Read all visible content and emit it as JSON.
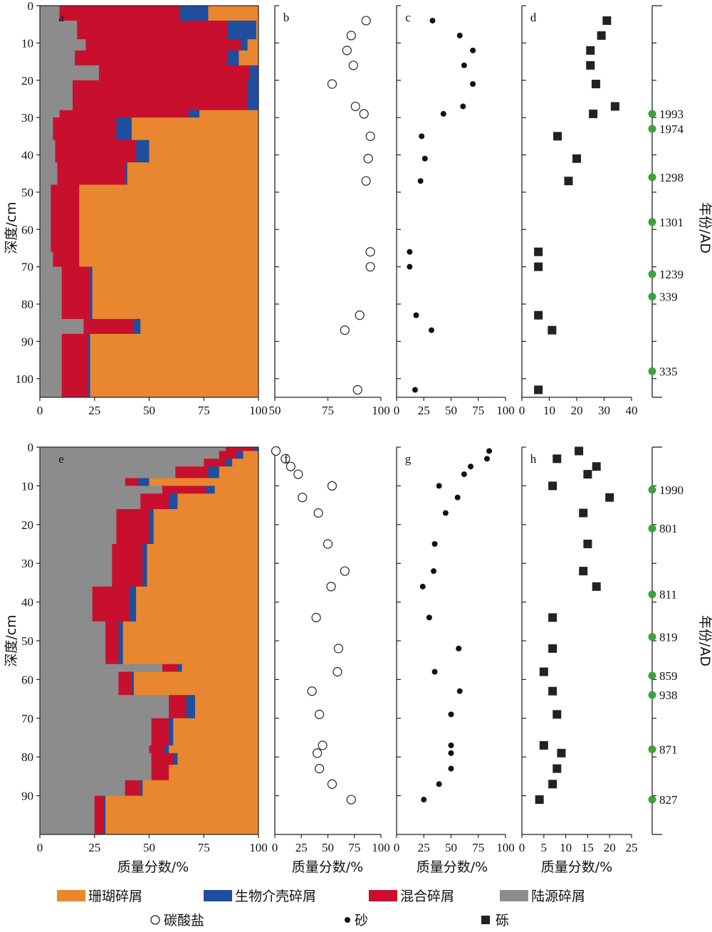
{
  "colors": {
    "coral": "#E8872F",
    "shell": "#1F4E9E",
    "mixed": "#C8102E",
    "terr": "#8C8C8C",
    "age_dot": "#3FA13C",
    "axis": "#222222"
  },
  "texts": {
    "depth_label": "深度/cm",
    "year_label": "年份/AD",
    "x_label": "质量分数/%"
  },
  "legend": [
    {
      "key": "coral",
      "label": "珊瑚碎屑",
      "marker": "rect"
    },
    {
      "key": "shell",
      "label": "生物介壳碎屑",
      "marker": "rect"
    },
    {
      "key": "mixed",
      "label": "混合碎屑",
      "marker": "rect"
    },
    {
      "key": "terr",
      "label": "陆源碎屑",
      "marker": "rect"
    },
    {
      "key": "carbonate",
      "label": "碳酸盐",
      "marker": "circle-open"
    },
    {
      "key": "sand",
      "label": "砂",
      "marker": "dot"
    },
    {
      "key": "gravel",
      "label": "砾",
      "marker": "square"
    }
  ],
  "chart_data": [
    {
      "panel": "a",
      "type": "area",
      "subtype": "stacked-depth-profile",
      "ylim": [
        0,
        105
      ],
      "xlim": [
        0,
        100
      ],
      "yticks": [
        0,
        10,
        20,
        30,
        40,
        50,
        60,
        70,
        80,
        90,
        100
      ],
      "xticks": [
        0,
        25,
        50,
        75,
        100
      ],
      "ylabel": "深度/cm",
      "xlabel": "",
      "series_order": [
        "terr",
        "mixed",
        "shell",
        "coral"
      ],
      "intervals": [
        {
          "top": 0,
          "bottom": 4,
          "terr": 9,
          "mixed": 55,
          "shell": 13,
          "coral": 23
        },
        {
          "top": 4,
          "bottom": 9,
          "terr": 17,
          "mixed": 69,
          "shell": 13,
          "coral": 1
        },
        {
          "top": 9,
          "bottom": 12,
          "terr": 21,
          "mixed": 71,
          "shell": 3,
          "coral": 5
        },
        {
          "top": 12,
          "bottom": 16,
          "terr": 16,
          "mixed": 70,
          "shell": 5,
          "coral": 9
        },
        {
          "top": 16,
          "bottom": 20,
          "terr": 27,
          "mixed": 69,
          "shell": 4,
          "coral": 0
        },
        {
          "top": 20,
          "bottom": 24,
          "terr": 15,
          "mixed": 80,
          "shell": 5,
          "coral": 0
        },
        {
          "top": 24,
          "bottom": 28,
          "terr": 15,
          "mixed": 80,
          "shell": 5,
          "coral": 0
        },
        {
          "top": 28,
          "bottom": 30,
          "terr": 9,
          "mixed": 59,
          "shell": 5,
          "coral": 27
        },
        {
          "top": 30,
          "bottom": 36,
          "terr": 6,
          "mixed": 29,
          "shell": 7,
          "coral": 58
        },
        {
          "top": 36,
          "bottom": 42,
          "terr": 7,
          "mixed": 37,
          "shell": 6,
          "coral": 50
        },
        {
          "top": 42,
          "bottom": 48,
          "terr": 8,
          "mixed": 31,
          "shell": 1,
          "coral": 60
        },
        {
          "top": 48,
          "bottom": 66,
          "terr": 5,
          "mixed": 13,
          "shell": 0,
          "coral": 82
        },
        {
          "top": 66,
          "bottom": 70,
          "terr": 6,
          "mixed": 12,
          "shell": 0,
          "coral": 82
        },
        {
          "top": 70,
          "bottom": 80,
          "terr": 10,
          "mixed": 13,
          "shell": 1,
          "coral": 76
        },
        {
          "top": 80,
          "bottom": 84,
          "terr": 10,
          "mixed": 13,
          "shell": 1,
          "coral": 76
        },
        {
          "top": 84,
          "bottom": 88,
          "terr": 20,
          "mixed": 23,
          "shell": 3,
          "coral": 54
        },
        {
          "top": 88,
          "bottom": 105,
          "terr": 10,
          "mixed": 12,
          "shell": 1,
          "coral": 77
        }
      ]
    },
    {
      "panel": "b",
      "type": "scatter",
      "marker": "circle-open",
      "xlim": [
        50,
        100
      ],
      "xticks": [
        50,
        75,
        100
      ],
      "ylim": [
        0,
        105
      ],
      "x": [
        93,
        86,
        84,
        87,
        77,
        88,
        92,
        95,
        94,
        93,
        95,
        95,
        90,
        83,
        89
      ],
      "y": [
        4,
        8,
        12,
        16,
        21,
        27,
        29,
        35,
        41,
        47,
        66,
        70,
        83,
        87,
        103
      ]
    },
    {
      "panel": "c",
      "type": "scatter",
      "marker": "dot",
      "xlim": [
        0,
        100
      ],
      "xticks": [
        0,
        25,
        50,
        75,
        100
      ],
      "ylim": [
        0,
        105
      ],
      "x": [
        33,
        58,
        70,
        62,
        70,
        61,
        43,
        23,
        26,
        22,
        12,
        12,
        18,
        32,
        17
      ],
      "y": [
        4,
        8,
        12,
        16,
        21,
        27,
        29,
        35,
        41,
        47,
        66,
        70,
        83,
        87,
        103
      ]
    },
    {
      "panel": "d",
      "type": "scatter",
      "marker": "square",
      "xlim": [
        0,
        40
      ],
      "xticks": [
        0,
        10,
        20,
        30,
        40
      ],
      "ylim": [
        0,
        105
      ],
      "x": [
        31,
        29,
        25,
        25,
        27,
        34,
        26,
        13,
        20,
        17,
        6,
        6,
        6,
        11,
        6
      ],
      "y": [
        4,
        8,
        12,
        16,
        21,
        27,
        29,
        35,
        41,
        47,
        66,
        70,
        83,
        87,
        103
      ]
    },
    {
      "panel": "e",
      "type": "area",
      "subtype": "stacked-depth-profile",
      "ylim": [
        0,
        100
      ],
      "xlim": [
        0,
        100
      ],
      "yticks": [
        0,
        10,
        20,
        30,
        40,
        50,
        60,
        70,
        80,
        90
      ],
      "xticks": [
        0,
        25,
        50,
        75,
        100
      ],
      "ylabel": "深度/cm",
      "xlabel": "质量分数/%",
      "series_order": [
        "terr",
        "mixed",
        "shell",
        "coral"
      ],
      "intervals": [
        {
          "top": 0,
          "bottom": 1,
          "terr": 85,
          "mixed": 13,
          "shell": 2,
          "coral": 0
        },
        {
          "top": 1,
          "bottom": 3,
          "terr": 82,
          "mixed": 8,
          "shell": 3,
          "coral": 7
        },
        {
          "top": 3,
          "bottom": 5,
          "terr": 75,
          "mixed": 10,
          "shell": 3,
          "coral": 12
        },
        {
          "top": 5,
          "bottom": 8,
          "terr": 62,
          "mixed": 15,
          "shell": 5,
          "coral": 18
        },
        {
          "top": 8,
          "bottom": 10,
          "terr": 39,
          "mixed": 6,
          "shell": 5,
          "coral": 50
        },
        {
          "top": 10,
          "bottom": 12,
          "terr": 56,
          "mixed": 20,
          "shell": 4,
          "coral": 20
        },
        {
          "top": 12,
          "bottom": 16,
          "terr": 46,
          "mixed": 13,
          "shell": 4,
          "coral": 37
        },
        {
          "top": 16,
          "bottom": 25,
          "terr": 35,
          "mixed": 15,
          "shell": 2,
          "coral": 48
        },
        {
          "top": 25,
          "bottom": 36,
          "terr": 33,
          "mixed": 14,
          "shell": 2,
          "coral": 51
        },
        {
          "top": 36,
          "bottom": 45,
          "terr": 24,
          "mixed": 17,
          "shell": 3,
          "coral": 56
        },
        {
          "top": 45,
          "bottom": 56,
          "terr": 30,
          "mixed": 6,
          "shell": 2,
          "coral": 62
        },
        {
          "top": 56,
          "bottom": 58,
          "terr": 56,
          "mixed": 7,
          "shell": 2,
          "coral": 35
        },
        {
          "top": 58,
          "bottom": 64,
          "terr": 36,
          "mixed": 6,
          "shell": 1,
          "coral": 57
        },
        {
          "top": 64,
          "bottom": 70,
          "terr": 59,
          "mixed": 8,
          "shell": 4,
          "coral": 29
        },
        {
          "top": 70,
          "bottom": 77,
          "terr": 51,
          "mixed": 8,
          "shell": 2,
          "coral": 39
        },
        {
          "top": 77,
          "bottom": 79,
          "terr": 50,
          "mixed": 7,
          "shell": 2,
          "coral": 41
        },
        {
          "top": 79,
          "bottom": 82,
          "terr": 51,
          "mixed": 10,
          "shell": 2,
          "coral": 37
        },
        {
          "top": 82,
          "bottom": 86,
          "terr": 51,
          "mixed": 8,
          "shell": 0,
          "coral": 41
        },
        {
          "top": 86,
          "bottom": 90,
          "terr": 39,
          "mixed": 7,
          "shell": 1,
          "coral": 53
        },
        {
          "top": 90,
          "bottom": 100,
          "terr": 25,
          "mixed": 4,
          "shell": 1,
          "coral": 70
        }
      ]
    },
    {
      "panel": "f",
      "type": "scatter",
      "marker": "circle-open",
      "xlim": [
        0,
        100
      ],
      "xticks": [
        0,
        25,
        50,
        75,
        100
      ],
      "ylim": [
        0,
        100
      ],
      "xlabel": "质量分数/%",
      "x": [
        1,
        10,
        15,
        22,
        54,
        26,
        41,
        50,
        66,
        53,
        39,
        60,
        59,
        35,
        42,
        45,
        40,
        42,
        54,
        72
      ],
      "y": [
        1,
        3,
        5,
        7,
        10,
        13,
        17,
        25,
        32,
        36,
        44,
        52,
        58,
        63,
        69,
        77,
        79,
        83,
        87,
        91
      ]
    },
    {
      "panel": "g",
      "type": "scatter",
      "marker": "dot",
      "xlim": [
        0,
        100
      ],
      "xticks": [
        0,
        25,
        50,
        75,
        100
      ],
      "ylim": [
        0,
        100
      ],
      "xlabel": "质量分数/%",
      "x": [
        85,
        83,
        68,
        62,
        39,
        56,
        45,
        35,
        34,
        24,
        30,
        57,
        35,
        58,
        50,
        50,
        50,
        50,
        39,
        25
      ],
      "y": [
        1,
        3,
        5,
        7,
        10,
        13,
        17,
        25,
        32,
        36,
        44,
        52,
        58,
        63,
        69,
        77,
        79,
        83,
        87,
        91
      ]
    },
    {
      "panel": "h",
      "type": "scatter",
      "marker": "square",
      "xlim": [
        0,
        25
      ],
      "xticks": [
        0,
        5,
        10,
        15,
        20,
        25
      ],
      "ylim": [
        0,
        100
      ],
      "xlabel": "质量分数/%",
      "x": [
        13,
        8,
        17,
        15,
        7,
        20,
        14,
        15,
        14,
        17,
        7,
        7,
        5,
        7,
        8,
        5,
        9,
        8,
        7,
        4
      ],
      "y": [
        1,
        3,
        5,
        7,
        10,
        13,
        17,
        25,
        32,
        36,
        44,
        52,
        58,
        63,
        69,
        77,
        79,
        83,
        87,
        91
      ]
    }
  ],
  "age_columns": [
    {
      "panel": "top",
      "ylim": [
        0,
        105
      ],
      "ylabel": "年份/AD",
      "dates": [
        {
          "depth": 29,
          "label": "1993"
        },
        {
          "depth": 33,
          "label": "1974"
        },
        {
          "depth": 46,
          "label": "1298"
        },
        {
          "depth": 58,
          "label": "1301"
        },
        {
          "depth": 72,
          "label": "1239"
        },
        {
          "depth": 78,
          "label": "339"
        },
        {
          "depth": 98,
          "label": "335"
        }
      ]
    },
    {
      "panel": "bottom",
      "ylim": [
        0,
        100
      ],
      "ylabel": "年份/AD",
      "dates": [
        {
          "depth": 11,
          "label": "1990"
        },
        {
          "depth": 21,
          "label": "801"
        },
        {
          "depth": 38,
          "label": "811"
        },
        {
          "depth": 49,
          "label": "819"
        },
        {
          "depth": 59,
          "label": "859"
        },
        {
          "depth": 64,
          "label": "938"
        },
        {
          "depth": 78,
          "label": "871"
        },
        {
          "depth": 91,
          "label": "827"
        }
      ]
    }
  ]
}
